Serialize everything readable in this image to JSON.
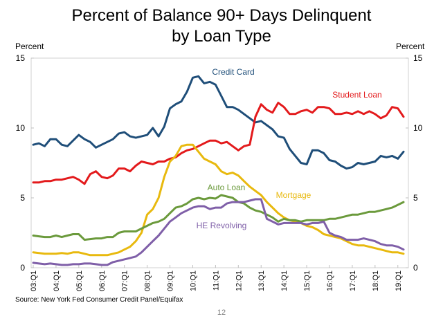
{
  "title_line1": "Percent of Balance 90+ Days Delinquent",
  "title_line2": "by Loan Type",
  "y_unit_left": "Percent",
  "y_unit_right": "Percent",
  "source": "Source: New York Fed Consumer Credit Panel/Equifax",
  "page_number": "12",
  "chart_data": {
    "type": "line",
    "title": "Percent of Balance 90+ Days Delinquent by Loan Type",
    "ylabel": "Percent",
    "ylim": [
      0,
      15
    ],
    "yticks": [
      0,
      5,
      10,
      15
    ],
    "grid": false,
    "x_start_quarter": "03:Q1",
    "x_tick_labels": [
      "03:Q1",
      "04:Q1",
      "05:Q1",
      "06:Q1",
      "07:Q1",
      "08:Q1",
      "09:Q1",
      "10:Q1",
      "11:Q1",
      "12:Q1",
      "13:Q1",
      "14:Q1",
      "15:Q1",
      "16:Q1",
      "17:Q1",
      "18:Q1",
      "19:Q1"
    ],
    "series": [
      {
        "name": "Credit Card",
        "color": "#1f4e79",
        "values": [
          8.8,
          8.9,
          8.7,
          9.2,
          9.2,
          8.8,
          8.7,
          9.1,
          9.5,
          9.2,
          9.0,
          8.6,
          8.8,
          9.0,
          9.2,
          9.6,
          9.7,
          9.4,
          9.3,
          9.4,
          9.5,
          10.0,
          9.4,
          10.1,
          11.4,
          11.7,
          11.9,
          12.6,
          13.6,
          13.7,
          13.2,
          13.3,
          13.1,
          12.3,
          11.5,
          11.5,
          11.3,
          11.0,
          10.7,
          10.4,
          10.5,
          10.2,
          9.9,
          9.4,
          9.3,
          8.5,
          8.0,
          7.5,
          7.4,
          8.4,
          8.4,
          8.2,
          7.7,
          7.6,
          7.3,
          7.1,
          7.2,
          7.5,
          7.4,
          7.5,
          7.6,
          8.0,
          7.9,
          8.0,
          7.8,
          8.3
        ]
      },
      {
        "name": "Student Loan",
        "color": "#e31a1c",
        "values": [
          6.1,
          6.1,
          6.2,
          6.2,
          6.3,
          6.3,
          6.4,
          6.5,
          6.3,
          6.0,
          6.7,
          6.9,
          6.5,
          6.4,
          6.6,
          7.1,
          7.1,
          6.9,
          7.3,
          7.6,
          7.5,
          7.4,
          7.6,
          7.6,
          7.8,
          7.9,
          8.2,
          8.4,
          8.5,
          8.7,
          8.9,
          9.1,
          9.1,
          8.9,
          9.0,
          8.7,
          8.4,
          8.7,
          8.8,
          10.8,
          11.7,
          11.3,
          11.1,
          11.8,
          11.5,
          11.0,
          11.0,
          11.2,
          11.3,
          11.1,
          11.5,
          11.5,
          11.4,
          11.0,
          11.0,
          11.1,
          11.0,
          11.2,
          11.0,
          11.2,
          11.0,
          10.7,
          10.9,
          11.5,
          11.4,
          10.8
        ]
      },
      {
        "name": "Mortgage",
        "color": "#e8b90e",
        "values": [
          1.1,
          1.05,
          1.0,
          1.0,
          1.0,
          1.05,
          1.0,
          1.1,
          1.1,
          1.0,
          0.9,
          0.9,
          0.9,
          0.9,
          1.0,
          1.1,
          1.3,
          1.5,
          1.9,
          2.5,
          3.8,
          4.2,
          5.0,
          6.5,
          7.6,
          8.0,
          8.7,
          8.8,
          8.8,
          8.3,
          7.8,
          7.6,
          7.4,
          6.9,
          6.7,
          6.8,
          6.6,
          6.2,
          5.8,
          5.5,
          5.2,
          4.7,
          4.3,
          3.9,
          3.6,
          3.4,
          3.3,
          3.2,
          3.0,
          2.9,
          2.7,
          2.4,
          2.3,
          2.2,
          2.1,
          1.9,
          1.7,
          1.6,
          1.6,
          1.5,
          1.4,
          1.3,
          1.2,
          1.1,
          1.1,
          1.0
        ]
      },
      {
        "name": "Auto Loan",
        "color": "#6b9a3c",
        "values": [
          2.3,
          2.25,
          2.2,
          2.2,
          2.3,
          2.2,
          2.3,
          2.4,
          2.4,
          2.0,
          2.05,
          2.1,
          2.1,
          2.2,
          2.2,
          2.5,
          2.6,
          2.6,
          2.6,
          2.8,
          3.0,
          3.2,
          3.3,
          3.5,
          3.9,
          4.3,
          4.4,
          4.6,
          4.9,
          5.0,
          4.9,
          5.0,
          4.95,
          5.2,
          5.1,
          5.0,
          4.7,
          4.6,
          4.3,
          4.1,
          4.0,
          3.8,
          3.6,
          3.3,
          3.5,
          3.4,
          3.4,
          3.3,
          3.4,
          3.4,
          3.4,
          3.4,
          3.5,
          3.5,
          3.6,
          3.7,
          3.8,
          3.8,
          3.9,
          4.0,
          4.0,
          4.1,
          4.2,
          4.3,
          4.5,
          4.7
        ]
      },
      {
        "name": "HE Revolving",
        "color": "#7f5fa8",
        "values": [
          0.35,
          0.3,
          0.25,
          0.3,
          0.25,
          0.2,
          0.2,
          0.25,
          0.25,
          0.3,
          0.3,
          0.25,
          0.2,
          0.2,
          0.4,
          0.5,
          0.6,
          0.7,
          0.8,
          1.1,
          1.5,
          1.9,
          2.3,
          2.8,
          3.3,
          3.6,
          3.9,
          4.1,
          4.3,
          4.4,
          4.4,
          4.2,
          4.3,
          4.3,
          4.6,
          4.7,
          4.7,
          4.7,
          4.8,
          4.9,
          4.9,
          3.5,
          3.3,
          3.1,
          3.2,
          3.2,
          3.2,
          3.2,
          3.1,
          3.2,
          3.2,
          3.3,
          2.5,
          2.3,
          2.2,
          2.0,
          2.0,
          2.0,
          2.1,
          2.0,
          1.9,
          1.7,
          1.6,
          1.6,
          1.5,
          1.3
        ]
      }
    ],
    "annotations": [
      {
        "text": "Credit Card",
        "series": "Credit Card"
      },
      {
        "text": "Student Loan",
        "series": "Student Loan"
      },
      {
        "text": "Auto Loan",
        "series": "Auto Loan"
      },
      {
        "text": "Mortgage",
        "series": "Mortgage"
      },
      {
        "text": "HE Revolving",
        "series": "HE Revolving"
      }
    ]
  }
}
